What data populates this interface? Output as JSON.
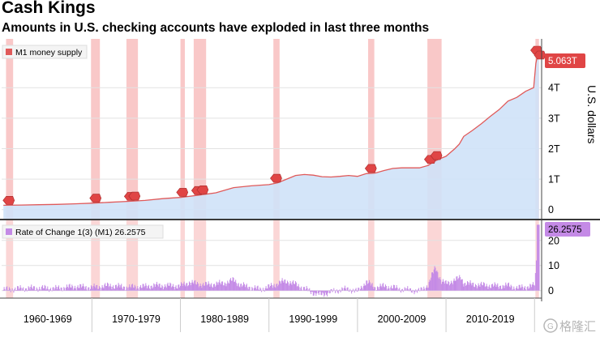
{
  "header": {
    "title": "Cash Kings",
    "subtitle": "Amounts in U.S. checking accounts have exploded in last three months"
  },
  "colors": {
    "m1_line": "#e05a5a",
    "m1_fill": "#cfe2f8",
    "recession_band": "#f7b5b5",
    "roc_bar": "#c48ae6",
    "marker": "#e04545",
    "watermark": "#aaaaaa"
  },
  "watermark": {
    "text": "格隆汇",
    "icon": "g-logo-icon"
  },
  "chart_data": [
    {
      "type": "area",
      "title": "Cash Kings",
      "subtitle": "Amounts in U.S. checking accounts have exploded in last three months",
      "legend": [
        "M1 money supply"
      ],
      "legend_position": "top-left",
      "ylabel": "U.S. dollars",
      "ylim": [
        -0.3,
        5.6
      ],
      "yticks": [
        {
          "value": 0,
          "label": "0"
        },
        {
          "value": 1,
          "label": "1T"
        },
        {
          "value": 2,
          "label": "2T"
        },
        {
          "value": 3,
          "label": "3T"
        },
        {
          "value": 4,
          "label": "4T"
        }
      ],
      "xlim": [
        1959.8,
        2020.8
      ],
      "x_groups": [
        {
          "label": "1960-1969",
          "from": 1960,
          "to": 1970
        },
        {
          "label": "1970-1979",
          "from": 1970,
          "to": 1980
        },
        {
          "label": "1980-1989",
          "from": 1980,
          "to": 1990
        },
        {
          "label": "1990-1999",
          "from": 1990,
          "to": 2000
        },
        {
          "label": "2000-2009",
          "from": 2000,
          "to": 2010
        },
        {
          "label": "2010-2019",
          "from": 2010,
          "to": 2020
        }
      ],
      "last_value_label": "5.063T",
      "grid": true,
      "recession_shading": [
        [
          1960.3,
          1961.1
        ],
        [
          1969.9,
          1970.9
        ],
        [
          1973.9,
          1975.2
        ],
        [
          1980.0,
          1980.5
        ],
        [
          1981.5,
          1982.9
        ],
        [
          1990.5,
          1991.2
        ],
        [
          2001.2,
          2001.9
        ],
        [
          2007.9,
          2009.5
        ],
        [
          2020.1,
          2020.5
        ]
      ],
      "recession_markers": [
        1960.6,
        1970.4,
        1974.3,
        1974.8,
        1980.2,
        1981.9,
        1982.5,
        1990.8,
        2001.5,
        2008.2,
        2008.9,
        2020.2,
        2020.6
      ],
      "series": [
        {
          "name": "M1 money supply",
          "x": [
            1960,
            1962,
            1964,
            1966,
            1968,
            1970,
            1972,
            1974,
            1976,
            1978,
            1980,
            1982,
            1984,
            1986,
            1988,
            1990,
            1991,
            1992,
            1993,
            1994,
            1995,
            1996,
            1997,
            1998,
            1999,
            2000,
            2001,
            2002,
            2003,
            2004,
            2005,
            2006,
            2007,
            2008,
            2008.8,
            2009.5,
            2010,
            2011,
            2011.5,
            2012,
            2013,
            2014,
            2015,
            2016,
            2017,
            2018,
            2019,
            2019.9,
            2020.15,
            2020.3,
            2020.5
          ],
          "values": [
            0.14,
            0.15,
            0.16,
            0.17,
            0.19,
            0.21,
            0.24,
            0.27,
            0.3,
            0.36,
            0.4,
            0.47,
            0.55,
            0.72,
            0.78,
            0.82,
            0.88,
            1.0,
            1.12,
            1.15,
            1.13,
            1.08,
            1.07,
            1.09,
            1.12,
            1.09,
            1.18,
            1.2,
            1.28,
            1.35,
            1.37,
            1.37,
            1.37,
            1.45,
            1.6,
            1.69,
            1.75,
            2.0,
            2.15,
            2.4,
            2.6,
            2.82,
            3.06,
            3.28,
            3.56,
            3.68,
            3.88,
            4.0,
            4.8,
            5.0,
            5.063
          ]
        }
      ]
    },
    {
      "type": "bar",
      "legend": [
        "Rate of Change 1(3) (M1) 26.2575"
      ],
      "legend_position": "top-left",
      "ylim": [
        -3,
        28
      ],
      "yticks": [
        {
          "value": 0,
          "label": "0"
        },
        {
          "value": 10,
          "label": "10"
        },
        {
          "value": 20,
          "label": "20"
        }
      ],
      "last_value_label": "26.2575",
      "series": [
        {
          "name": "Rate of Change 1(3) (M1) 26.2575",
          "x": [
            1960,
            1962,
            1964,
            1966,
            1968,
            1970,
            1972,
            1974,
            1976,
            1977,
            1978,
            1980,
            1981,
            1982,
            1983,
            1985,
            1986,
            1986.8,
            1988,
            1989,
            1990,
            1991.5,
            1992,
            1993,
            1994,
            1995,
            1995.8,
            1997,
            1998,
            1999,
            2000,
            2001,
            2002,
            2003,
            2004,
            2005,
            2006,
            2007,
            2008,
            2008.8,
            2009.5,
            2010,
            2011,
            2011.7,
            2012,
            2013,
            2014,
            2015,
            2016,
            2017,
            2018,
            2019,
            2020,
            2020.2,
            2020.3,
            2020.5
          ],
          "values": [
            0.3,
            0.8,
            1.0,
            0.8,
            1.6,
            1.2,
            2.0,
            1.3,
            1.6,
            2.0,
            2.0,
            1.8,
            3.3,
            2.6,
            2.3,
            3.0,
            4.2,
            2.2,
            1.2,
            0.5,
            1.4,
            3.5,
            3.8,
            2.5,
            0.8,
            -0.8,
            -1.6,
            -0.6,
            0.3,
            0.6,
            -0.4,
            3.5,
            1.2,
            1.8,
            1.2,
            0.5,
            0.2,
            -0.3,
            2.2,
            9.4,
            3.6,
            2.8,
            4.2,
            5.2,
            3.0,
            2.5,
            2.2,
            2.0,
            1.8,
            2.0,
            1.0,
            1.4,
            2.0,
            12.0,
            26.2575,
            26.2575
          ]
        }
      ]
    }
  ]
}
